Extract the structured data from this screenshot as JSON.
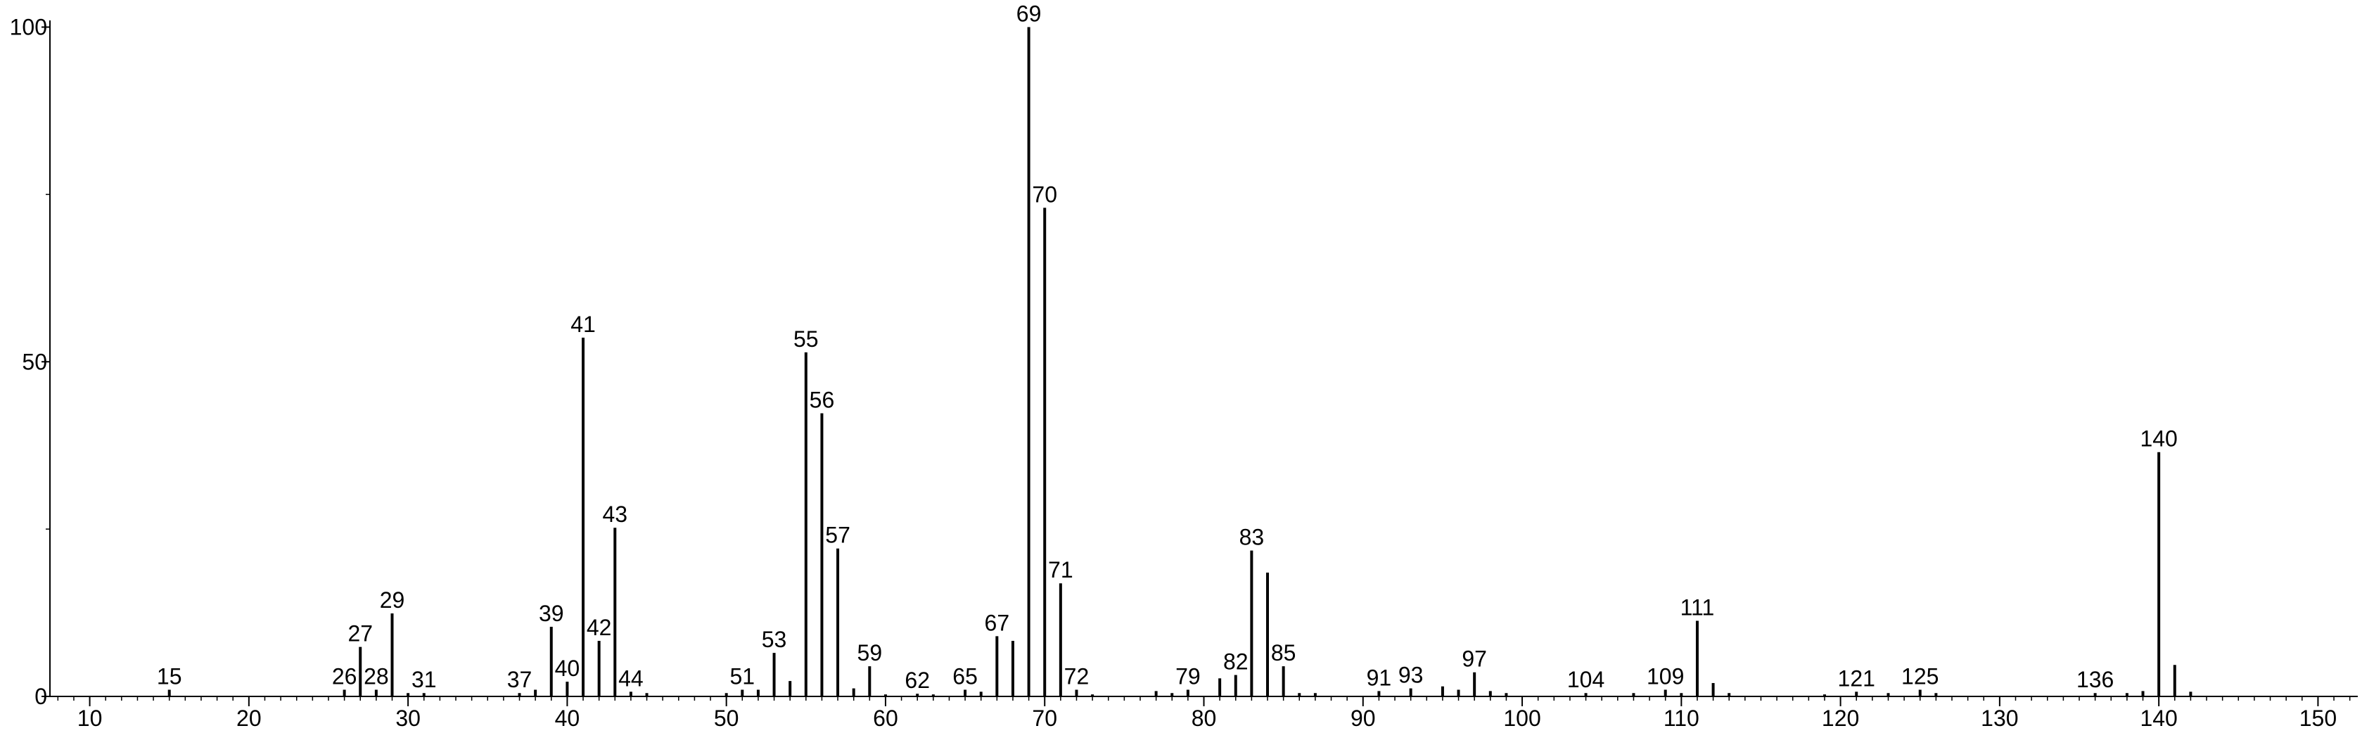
{
  "chart_data": {
    "type": "stick",
    "x": [
      15,
      26,
      27,
      28,
      29,
      30,
      31,
      37,
      38,
      39,
      40,
      41,
      42,
      43,
      44,
      45,
      50,
      51,
      52,
      53,
      54,
      55,
      56,
      57,
      58,
      59,
      60,
      62,
      63,
      65,
      66,
      67,
      68,
      69,
      70,
      71,
      72,
      73,
      77,
      78,
      79,
      81,
      82,
      83,
      84,
      85,
      86,
      87,
      91,
      93,
      95,
      96,
      97,
      98,
      99,
      104,
      107,
      109,
      110,
      111,
      112,
      113,
      119,
      121,
      123,
      125,
      126,
      136,
      138,
      139,
      140,
      141,
      142
    ],
    "values": [
      1,
      1,
      7.4,
      1,
      12.4,
      0.5,
      0.5,
      0.5,
      1,
      10.4,
      2.2,
      53.6,
      8.3,
      25.2,
      0.7,
      0.5,
      0.5,
      1,
      1,
      6.5,
      2.3,
      51.4,
      42.3,
      22.1,
      1.2,
      4.5,
      0.3,
      0.4,
      0.3,
      1,
      0.7,
      9,
      8.3,
      100,
      73,
      16.9,
      1,
      0.3,
      0.8,
      0.5,
      1,
      2.7,
      3.2,
      21.8,
      18.5,
      4.5,
      0.5,
      0.5,
      0.8,
      1.2,
      1.5,
      1,
      3.6,
      0.8,
      0.5,
      0.5,
      0.5,
      1,
      0.5,
      11.3,
      2,
      0.5,
      0.3,
      0.7,
      0.5,
      1,
      0.5,
      0.5,
      0.5,
      0.8,
      36.5,
      4.7,
      0.7
    ],
    "peak_labels": [
      "15",
      "26",
      "27",
      "28",
      "29",
      null,
      "31",
      "37",
      null,
      "39",
      "40",
      "41",
      "42",
      "43",
      "44",
      null,
      null,
      "51",
      null,
      "53",
      null,
      "55",
      "56",
      "57",
      null,
      "59",
      null,
      "62",
      null,
      "65",
      null,
      "67",
      null,
      "69",
      "70",
      "71",
      "72",
      null,
      null,
      null,
      "79",
      null,
      "82",
      "83",
      null,
      "85",
      null,
      null,
      "91",
      "93",
      null,
      null,
      "97",
      null,
      null,
      "104",
      null,
      "109",
      null,
      "111",
      null,
      null,
      null,
      "121",
      null,
      "125",
      null,
      "136",
      null,
      null,
      "140",
      null,
      null
    ],
    "color": "#000000",
    "xlim": [
      7.5,
      152.5
    ],
    "ylim": [
      0,
      101
    ],
    "xticks": [
      10,
      20,
      30,
      40,
      50,
      60,
      70,
      80,
      90,
      100,
      110,
      120,
      130,
      140,
      150
    ],
    "yticks": [
      0,
      50,
      100
    ],
    "xminor_step": 1,
    "yminor_step": 25
  }
}
